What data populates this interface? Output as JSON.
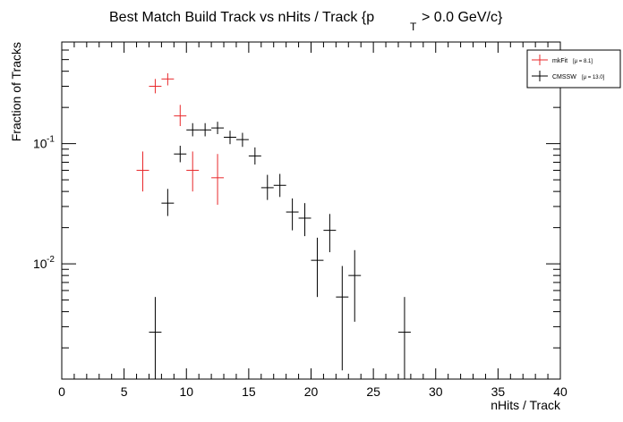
{
  "chart_data": {
    "type": "scatter",
    "title_main": "Best Match Build Track vs nHits / Track {p",
    "title_sub": "T",
    "title_rest": "> 0.0 GeV/c}",
    "xlabel": "nHits / Track",
    "ylabel": "Fraction of Tracks",
    "xlim": [
      0,
      40
    ],
    "ylim": [
      0.0011,
      0.7
    ],
    "yscale": "log",
    "x_ticks": [
      "0",
      "5",
      "10",
      "15",
      "20",
      "25",
      "30",
      "35",
      "40"
    ],
    "x_tick_values": [
      0,
      5,
      10,
      15,
      20,
      25,
      30,
      35,
      40
    ],
    "y_ticks": [
      {
        "base": "10",
        "exp": "-2",
        "value": 0.01
      },
      {
        "base": "10",
        "exp": "-1",
        "value": 0.1
      }
    ],
    "grid": false,
    "legend_position": "top-right",
    "series": [
      {
        "name": "mkFit",
        "stat": "[μ =  8.1]",
        "color": "#e8282b",
        "points": [
          {
            "x": 6.5,
            "y": 0.06,
            "lo": 0.04,
            "hi": 0.086
          },
          {
            "x": 7.5,
            "y": 0.3,
            "lo": 0.262,
            "hi": 0.345
          },
          {
            "x": 8.5,
            "y": 0.345,
            "lo": 0.305,
            "hi": 0.385
          },
          {
            "x": 9.5,
            "y": 0.17,
            "lo": 0.14,
            "hi": 0.21
          },
          {
            "x": 10.5,
            "y": 0.06,
            "lo": 0.04,
            "hi": 0.086
          },
          {
            "x": 12.5,
            "y": 0.052,
            "lo": 0.031,
            "hi": 0.082
          }
        ]
      },
      {
        "name": "CMSSW",
        "stat": "[μ = 13.0]",
        "color": "#000000",
        "points": [
          {
            "x": 7.5,
            "y": 0.0027,
            "lo": 0.0011,
            "hi": 0.0053
          },
          {
            "x": 8.5,
            "y": 0.032,
            "lo": 0.025,
            "hi": 0.042
          },
          {
            "x": 9.5,
            "y": 0.082,
            "lo": 0.07,
            "hi": 0.096
          },
          {
            "x": 10.5,
            "y": 0.13,
            "lo": 0.115,
            "hi": 0.148
          },
          {
            "x": 11.5,
            "y": 0.13,
            "lo": 0.115,
            "hi": 0.148
          },
          {
            "x": 12.5,
            "y": 0.135,
            "lo": 0.12,
            "hi": 0.152
          },
          {
            "x": 13.5,
            "y": 0.113,
            "lo": 0.099,
            "hi": 0.128
          },
          {
            "x": 14.5,
            "y": 0.108,
            "lo": 0.094,
            "hi": 0.123
          },
          {
            "x": 15.5,
            "y": 0.079,
            "lo": 0.067,
            "hi": 0.093
          },
          {
            "x": 16.5,
            "y": 0.043,
            "lo": 0.034,
            "hi": 0.055
          },
          {
            "x": 17.5,
            "y": 0.045,
            "lo": 0.036,
            "hi": 0.056
          },
          {
            "x": 18.5,
            "y": 0.027,
            "lo": 0.019,
            "hi": 0.035
          },
          {
            "x": 19.5,
            "y": 0.024,
            "lo": 0.017,
            "hi": 0.032
          },
          {
            "x": 20.5,
            "y": 0.0107,
            "lo": 0.0053,
            "hi": 0.0165
          },
          {
            "x": 21.5,
            "y": 0.019,
            "lo": 0.0125,
            "hi": 0.026
          },
          {
            "x": 22.5,
            "y": 0.0053,
            "lo": 0.0013,
            "hi": 0.0096
          },
          {
            "x": 23.5,
            "y": 0.008,
            "lo": 0.0033,
            "hi": 0.013
          },
          {
            "x": 27.5,
            "y": 0.0027,
            "lo": 0.0011,
            "hi": 0.0053
          }
        ]
      }
    ]
  }
}
